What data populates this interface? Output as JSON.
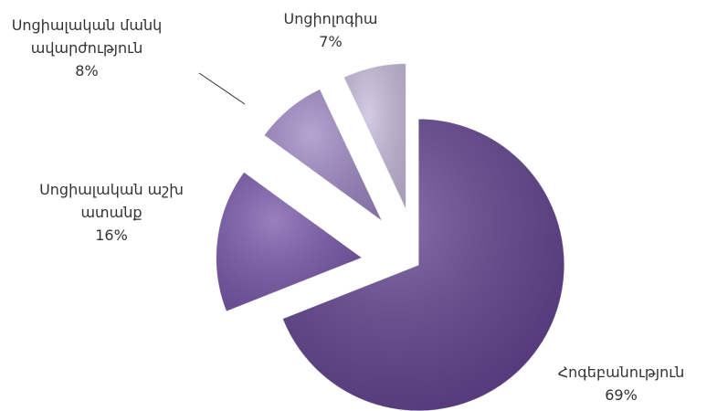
{
  "chart_data": {
    "type": "pie",
    "categories": [
      "Հոգեբանություն",
      "Սոցիալական աշխատանք",
      "Սոցիալական մանկավարժություն",
      "Սոցիոլոգիա"
    ],
    "values": [
      69,
      16,
      8,
      7
    ],
    "value_labels": [
      "69%",
      "16%",
      "8%",
      "7%"
    ],
    "colors": [
      "#5e3f8c",
      "#7655a8",
      "#9d86c3",
      "#c6badb"
    ]
  }
}
